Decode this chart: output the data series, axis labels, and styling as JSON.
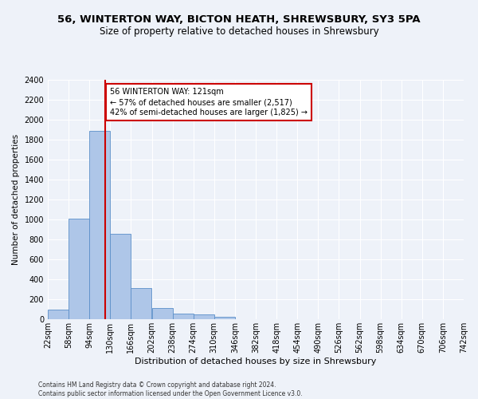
{
  "title1": "56, WINTERTON WAY, BICTON HEATH, SHREWSBURY, SY3 5PA",
  "title2": "Size of property relative to detached houses in Shrewsbury",
  "xlabel": "Distribution of detached houses by size in Shrewsbury",
  "ylabel": "Number of detached properties",
  "bin_labels": [
    "22sqm",
    "58sqm",
    "94sqm",
    "130sqm",
    "166sqm",
    "202sqm",
    "238sqm",
    "274sqm",
    "310sqm",
    "346sqm",
    "382sqm",
    "418sqm",
    "454sqm",
    "490sqm",
    "526sqm",
    "562sqm",
    "598sqm",
    "634sqm",
    "670sqm",
    "706sqm",
    "742sqm"
  ],
  "bin_edges": [
    22,
    58,
    94,
    130,
    166,
    202,
    238,
    274,
    310,
    346,
    382,
    418,
    454,
    490,
    526,
    562,
    598,
    634,
    670,
    706,
    742
  ],
  "bar_heights": [
    95,
    1010,
    1890,
    860,
    315,
    115,
    57,
    50,
    27,
    0,
    0,
    0,
    0,
    0,
    0,
    0,
    0,
    0,
    0,
    0
  ],
  "bar_color": "#aec6e8",
  "bar_edge_color": "#5b8fc9",
  "property_size": 121,
  "vline_color": "#cc0000",
  "annotation_line1": "56 WINTERTON WAY: 121sqm",
  "annotation_line2": "← 57% of detached houses are smaller (2,517)",
  "annotation_line3": "42% of semi-detached houses are larger (1,825) →",
  "annotation_box_color": "#ffffff",
  "annotation_box_edge": "#cc0000",
  "ylim": [
    0,
    2400
  ],
  "yticks": [
    0,
    200,
    400,
    600,
    800,
    1000,
    1200,
    1400,
    1600,
    1800,
    2000,
    2200,
    2400
  ],
  "footer": "Contains HM Land Registry data © Crown copyright and database right 2024.\nContains public sector information licensed under the Open Government Licence v3.0.",
  "background_color": "#eef2f9",
  "grid_color": "#ffffff",
  "title1_fontsize": 9.5,
  "title2_fontsize": 8.5,
  "xlabel_fontsize": 8,
  "ylabel_fontsize": 7.5,
  "tick_fontsize": 7,
  "footer_fontsize": 5.5
}
